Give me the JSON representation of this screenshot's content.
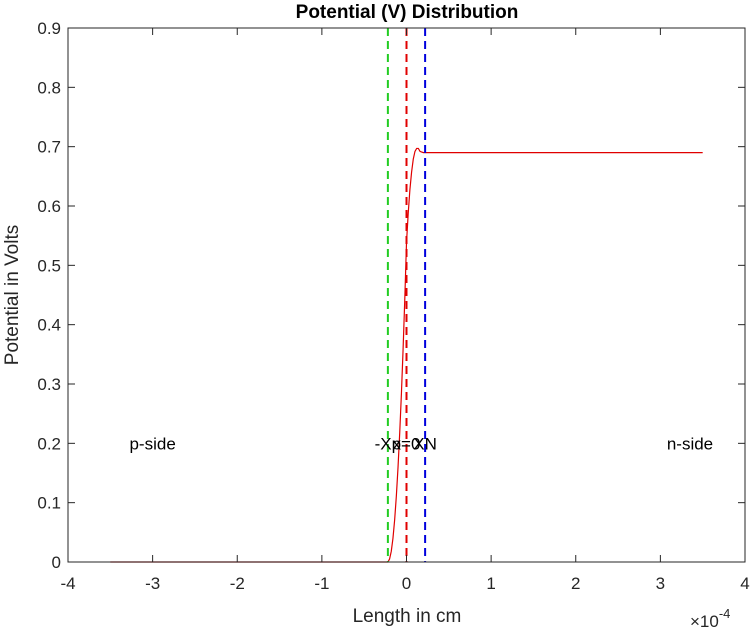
{
  "chart_data": {
    "type": "line",
    "title": "Potential (V) Distribution",
    "xlabel": "Length in cm",
    "ylabel": "Potential in Volts",
    "x_exponent_label": "×10",
    "x_exponent_power": "-4",
    "xlim": [
      -4,
      4
    ],
    "ylim": [
      0,
      0.9
    ],
    "x_ticks": [
      -4,
      -3,
      -2,
      -1,
      0,
      1,
      2,
      3,
      4
    ],
    "x_tick_labels": [
      "-4",
      "-3",
      "-2",
      "-1",
      "0",
      "1",
      "2",
      "3",
      "4"
    ],
    "y_ticks": [
      0,
      0.1,
      0.2,
      0.3,
      0.4,
      0.5,
      0.6,
      0.7,
      0.8,
      0.9
    ],
    "y_tick_labels": [
      "0",
      "0.1",
      "0.2",
      "0.3",
      "0.4",
      "0.5",
      "0.6",
      "0.7",
      "0.8",
      "0.9"
    ],
    "grid": false,
    "series": [
      {
        "color": "#e00000",
        "x": [
          -3.5,
          -0.22,
          -0.2,
          -0.18,
          -0.16,
          -0.14,
          -0.12,
          -0.1,
          -0.08,
          -0.06,
          -0.04,
          -0.02,
          0.0,
          0.02,
          0.04,
          0.06,
          0.08,
          0.1,
          0.12,
          0.14,
          0.16,
          0.18,
          0.2,
          0.22,
          3.5
        ],
        "y": [
          0.0,
          0.0,
          0.005,
          0.018,
          0.04,
          0.071,
          0.111,
          0.16,
          0.218,
          0.284,
          0.36,
          0.444,
          0.538,
          0.587,
          0.627,
          0.657,
          0.679,
          0.692,
          0.697,
          0.697,
          0.692,
          0.691,
          0.69,
          0.69,
          0.69
        ]
      }
    ],
    "vertical_lines": [
      {
        "x": -0.22,
        "color": "#22cc22",
        "style": "dashed"
      },
      {
        "x": 0.0,
        "color": "#e00000",
        "style": "dashed"
      },
      {
        "x": 0.22,
        "color": "#0000dd",
        "style": "dashed"
      }
    ],
    "annotations": [
      {
        "text": "p-side",
        "x": -3.0,
        "y": 0.2
      },
      {
        "text": "-Xp",
        "x": -0.22,
        "y": 0.2
      },
      {
        "text": "x=0",
        "x": 0.0,
        "y": 0.2
      },
      {
        "text": "XN",
        "x": 0.22,
        "y": 0.2
      },
      {
        "text": "n-side",
        "x": 3.35,
        "y": 0.2
      }
    ]
  }
}
